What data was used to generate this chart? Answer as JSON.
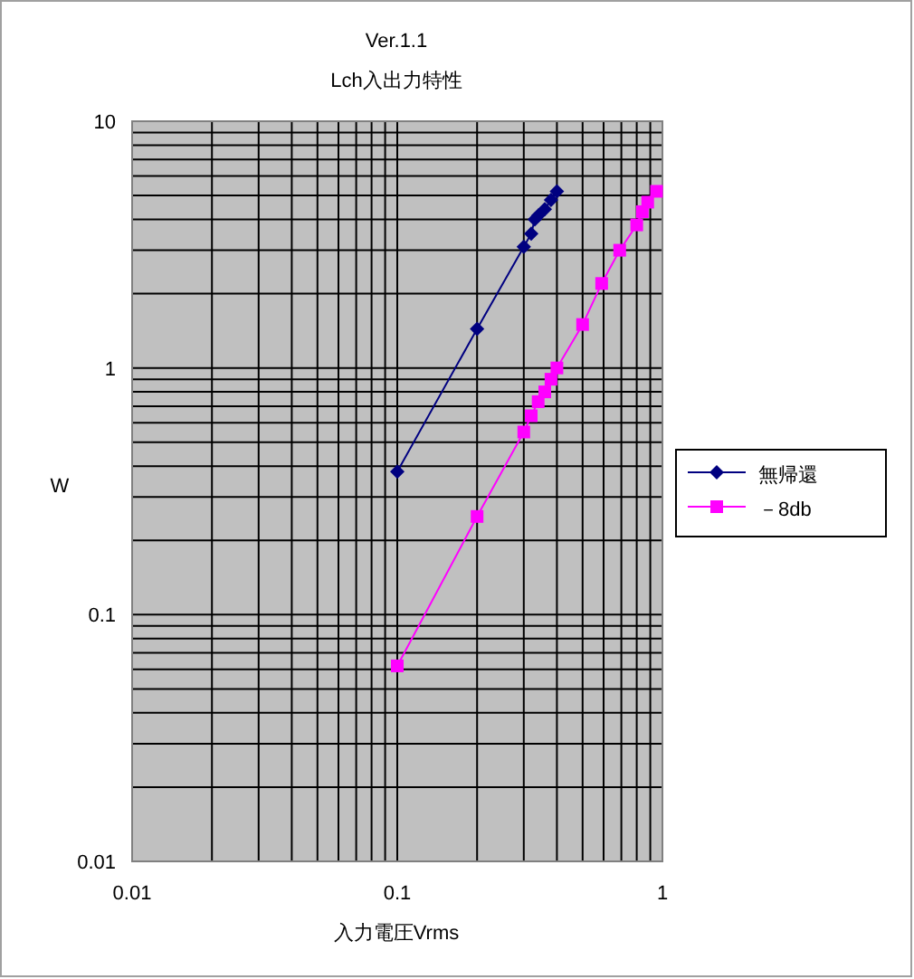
{
  "chart_data": {
    "type": "line",
    "title": "Ver.1.1",
    "subtitle": "Lch入出力特性",
    "xlabel": "入力電圧Vrms",
    "ylabel": "W",
    "log": "xy",
    "grid": true,
    "legend": "right",
    "xlim": [
      0.01,
      1
    ],
    "ylim": [
      0.01,
      10
    ],
    "xticks": [
      0.01,
      0.1,
      1
    ],
    "yticks": [
      0.01,
      0.1,
      1,
      10
    ],
    "series": [
      {
        "name": "無帰還",
        "color": "#000080",
        "marker": "diamond",
        "x": [
          0.1,
          0.2,
          0.3,
          0.32,
          0.33,
          0.34,
          0.36,
          0.38,
          0.4
        ],
        "values": [
          0.38,
          1.44,
          3.1,
          3.5,
          4.0,
          4.15,
          4.4,
          4.8,
          5.2
        ]
      },
      {
        "name": "－8db",
        "color": "#ff00ff",
        "marker": "square",
        "x": [
          0.1,
          0.2,
          0.3,
          0.32,
          0.34,
          0.36,
          0.38,
          0.4,
          0.5,
          0.59,
          0.69,
          0.8,
          0.84,
          0.88,
          0.95
        ],
        "values": [
          0.062,
          0.25,
          0.55,
          0.64,
          0.73,
          0.8,
          0.9,
          1.0,
          1.5,
          2.2,
          3.0,
          3.8,
          4.3,
          4.7,
          5.2
        ]
      }
    ]
  }
}
